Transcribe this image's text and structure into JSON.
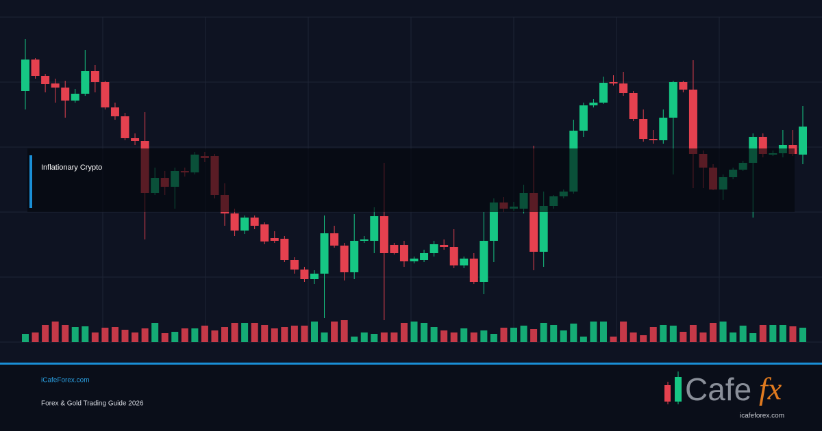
{
  "chart_data": {
    "type": "candlestick",
    "annotation": "Inflationary Crypto",
    "up_color": "#16c784",
    "down_color": "#e5414f",
    "ylim": [
      0,
      475
    ],
    "open": [
      367,
      413,
      389,
      378,
      372,
      353,
      363,
      396,
      380,
      343,
      330,
      298,
      294,
      218,
      240,
      227,
      250,
      248,
      272,
      272,
      215,
      188,
      163,
      182,
      172,
      152,
      151,
      120,
      106,
      92,
      100,
      159,
      141,
      102,
      148,
      148,
      184,
      142,
      142,
      118,
      120,
      130,
      142,
      139,
      112,
      122,
      88,
      148,
      204,
      195,
      195,
      218,
      132,
      199,
      213,
      220,
      309,
      346,
      350,
      380,
      378,
      364,
      326,
      297,
      295,
      328,
      380,
      369,
      275,
      255,
      223,
      241,
      252,
      262,
      300,
      274,
      276,
      288,
      274
    ],
    "high": [
      443,
      415,
      392,
      385,
      382,
      370,
      427,
      405,
      382,
      350,
      335,
      305,
      336,
      255,
      250,
      255,
      255,
      278,
      278,
      275,
      232,
      195,
      185,
      185,
      175,
      162,
      155,
      124,
      110,
      105,
      185,
      170,
      145,
      187,
      155,
      197,
      262,
      145,
      148,
      125,
      135,
      148,
      150,
      165,
      125,
      130,
      190,
      210,
      212,
      205,
      230,
      287,
      220,
      215,
      223,
      325,
      350,
      355,
      388,
      390,
      395,
      367,
      340,
      310,
      340,
      382,
      382,
      412,
      280,
      260,
      245,
      255,
      265,
      305,
      305,
      280,
      310,
      310,
      345
    ],
    "low": [
      340,
      385,
      365,
      350,
      328,
      350,
      360,
      365,
      340,
      325,
      295,
      288,
      150,
      215,
      215,
      195,
      242,
      245,
      263,
      210,
      170,
      155,
      158,
      165,
      143,
      145,
      117,
      100,
      88,
      85,
      35,
      138,
      90,
      92,
      145,
      130,
      32,
      128,
      110,
      115,
      117,
      125,
      135,
      108,
      108,
      85,
      70,
      117,
      190,
      192,
      188,
      105,
      110,
      195,
      210,
      217,
      300,
      343,
      348,
      375,
      360,
      323,
      293,
      290,
      290,
      245,
      365,
      225,
      225,
      222,
      208,
      238,
      250,
      182,
      270,
      272,
      270,
      272,
      260
    ],
    "close": [
      413,
      389,
      377,
      372,
      353,
      363,
      396,
      380,
      343,
      330,
      298,
      294,
      218,
      240,
      227,
      250,
      248,
      274,
      269,
      215,
      188,
      163,
      182,
      170,
      147,
      148,
      120,
      106,
      92,
      100,
      159,
      141,
      102,
      148,
      150,
      184,
      130,
      130,
      118,
      122,
      130,
      143,
      139,
      112,
      122,
      88,
      148,
      204,
      195,
      198,
      218,
      132,
      199,
      213,
      220,
      309,
      346,
      350,
      379,
      378,
      364,
      326,
      297,
      295,
      328,
      380,
      369,
      275,
      255,
      223,
      241,
      252,
      262,
      300,
      275,
      276,
      288,
      275,
      315
    ],
    "volume": [
      12,
      14,
      25,
      30,
      25,
      22,
      23,
      14,
      21,
      22,
      18,
      14,
      20,
      28,
      13,
      15,
      20,
      20,
      24,
      17,
      22,
      28,
      28,
      28,
      25,
      20,
      22,
      24,
      24,
      30,
      14,
      30,
      32,
      8,
      14,
      12,
      14,
      14,
      28,
      30,
      28,
      22,
      17,
      14,
      20,
      14,
      17,
      12,
      21,
      21,
      24,
      19,
      28,
      25,
      17,
      27,
      8,
      30,
      30,
      8,
      30,
      14,
      10,
      22,
      25,
      24,
      15,
      25,
      14,
      28,
      30,
      14,
      24,
      13,
      25,
      25,
      25,
      23,
      21
    ]
  },
  "footer": {
    "site": "iCafeForex.com",
    "tagline": "Forex & Gold Trading Guide 2026",
    "logo": {
      "text": "Cafe",
      "accent": "fx",
      "url": "icafeforex.com"
    }
  }
}
